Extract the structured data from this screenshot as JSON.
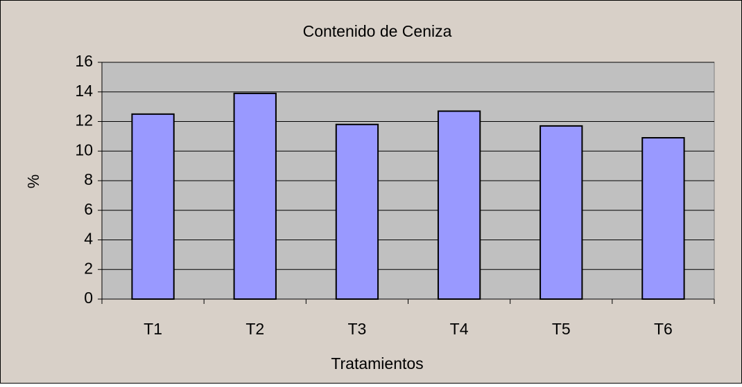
{
  "chart_data": {
    "type": "bar",
    "title": "Contenido de Ceniza",
    "x_label": "Tratamientos",
    "y_label": "%",
    "categories": [
      "T1",
      "T2",
      "T3",
      "T4",
      "T5",
      "T6"
    ],
    "values": [
      12.5,
      13.9,
      11.8,
      12.7,
      11.7,
      10.9
    ],
    "color": "#9999ff",
    "ylim": [
      0,
      16
    ],
    "yticks": [
      0,
      2,
      4,
      6,
      8,
      10,
      12,
      14,
      16
    ],
    "grid": true
  }
}
